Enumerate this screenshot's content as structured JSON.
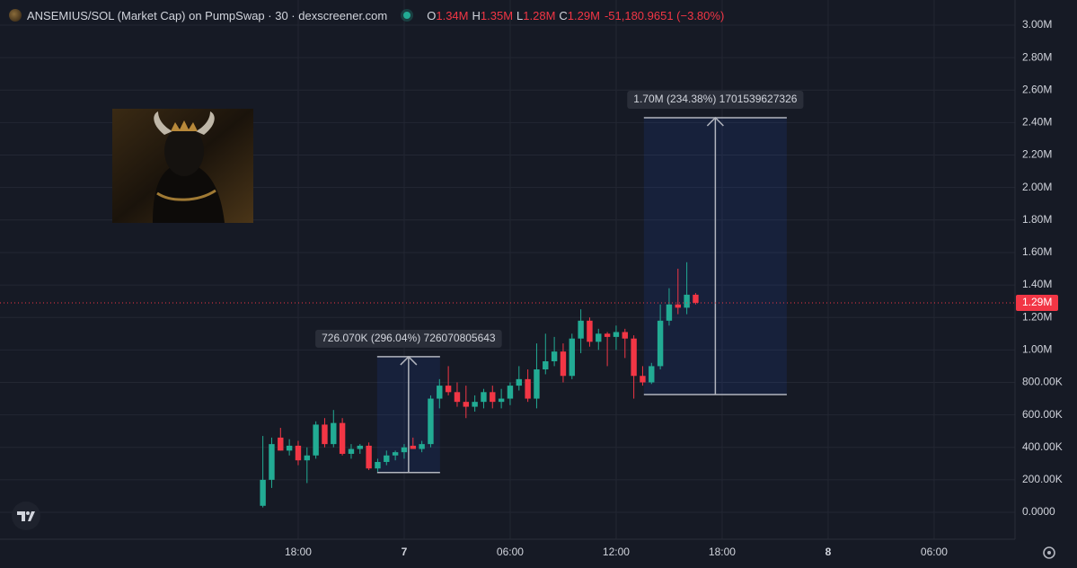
{
  "chart_data": {
    "type": "candlestick",
    "title": "ANSEMIUS/SOL (Market Cap) on PumpSwap · 30 · dexscreener.com",
    "legend_ohlc": [
      {
        "label": "O",
        "value": "1.34M"
      },
      {
        "label": "H",
        "value": "1.35M"
      },
      {
        "label": "L",
        "value": "1.28M"
      },
      {
        "label": "C",
        "value": "1.29M"
      }
    ],
    "change": "-51,180.9651 (−3.80%)",
    "up_color": "#22ab94",
    "down_color": "#f23645",
    "grid": true,
    "xlim": [
      -22.88,
      34.58
    ],
    "xticks": [
      {
        "value": -6,
        "label": "18:00"
      },
      {
        "value": 0,
        "label": "7"
      },
      {
        "value": 6,
        "label": "06:00"
      },
      {
        "value": 12,
        "label": "12:00"
      },
      {
        "value": 18,
        "label": "18:00"
      },
      {
        "value": 24,
        "label": "8"
      },
      {
        "value": 30,
        "label": "06:00"
      }
    ],
    "ylim": [
      -166000,
      3155000
    ],
    "yticks": [
      {
        "value": 0,
        "label": "0.0000"
      },
      {
        "value": 200000,
        "label": "200.00K"
      },
      {
        "value": 400000,
        "label": "400.00K"
      },
      {
        "value": 600000,
        "label": "600.00K"
      },
      {
        "value": 800000,
        "label": "800.00K"
      },
      {
        "value": 1000000,
        "label": "1.00M"
      },
      {
        "value": 1200000,
        "label": "1.20M"
      },
      {
        "value": 1400000,
        "label": "1.40M"
      },
      {
        "value": 1600000,
        "label": "1.60M"
      },
      {
        "value": 1800000,
        "label": "1.80M"
      },
      {
        "value": 2000000,
        "label": "2.00M"
      },
      {
        "value": 2200000,
        "label": "2.20M"
      },
      {
        "value": 2400000,
        "label": "2.40M"
      },
      {
        "value": 2600000,
        "label": "2.60M"
      },
      {
        "value": 2800000,
        "label": "2.80M"
      },
      {
        "value": 3000000,
        "label": "3.00M"
      }
    ],
    "x": [
      -8,
      -7.5,
      -7,
      -6.5,
      -6,
      -5.5,
      -5,
      -4.5,
      -4,
      -3.5,
      -3,
      -2.5,
      -2,
      -1.5,
      -1,
      -0.5,
      0,
      0.5,
      1,
      1.5,
      2,
      2.5,
      3,
      3.5,
      4,
      4.5,
      5,
      5.5,
      6,
      6.5,
      7,
      7.5,
      8,
      8.5,
      9,
      9.5,
      10,
      10.5,
      11,
      11.5,
      12,
      12.5,
      13,
      13.5,
      14,
      14.5,
      15,
      15.5,
      16,
      16.5
    ],
    "open": [
      40000,
      200000,
      460000,
      380000,
      410000,
      320000,
      350000,
      540000,
      420000,
      550000,
      360000,
      390000,
      410000,
      270000,
      310000,
      350000,
      370000,
      410000,
      390000,
      420000,
      700000,
      780000,
      740000,
      680000,
      650000,
      680000,
      740000,
      680000,
      700000,
      780000,
      820000,
      700000,
      880000,
      930000,
      990000,
      840000,
      1070000,
      1180000,
      1050000,
      1100000,
      1080000,
      1110000,
      1070000,
      840000,
      800000,
      900000,
      1180000,
      1280000,
      1260000,
      1340000
    ],
    "high": [
      470000,
      460000,
      520000,
      450000,
      440000,
      400000,
      560000,
      580000,
      630000,
      580000,
      420000,
      420000,
      430000,
      330000,
      380000,
      380000,
      420000,
      460000,
      440000,
      720000,
      820000,
      900000,
      800000,
      780000,
      720000,
      760000,
      780000,
      760000,
      800000,
      900000,
      880000,
      1040000,
      1100000,
      1080000,
      1040000,
      1100000,
      1250000,
      1200000,
      1130000,
      1110000,
      1150000,
      1130000,
      1090000,
      900000,
      920000,
      1280000,
      1380000,
      1500000,
      1540000,
      1350000
    ],
    "low": [
      30000,
      150000,
      380000,
      350000,
      290000,
      180000,
      330000,
      400000,
      400000,
      350000,
      330000,
      360000,
      260000,
      250000,
      290000,
      320000,
      330000,
      390000,
      370000,
      400000,
      640000,
      720000,
      650000,
      580000,
      620000,
      640000,
      640000,
      640000,
      660000,
      750000,
      680000,
      640000,
      850000,
      900000,
      800000,
      820000,
      980000,
      1020000,
      1000000,
      900000,
      1000000,
      950000,
      700000,
      780000,
      790000,
      880000,
      1150000,
      1220000,
      1220000,
      1280000
    ],
    "close": [
      200000,
      420000,
      380000,
      410000,
      320000,
      350000,
      540000,
      420000,
      550000,
      360000,
      390000,
      410000,
      270000,
      310000,
      350000,
      370000,
      400000,
      390000,
      420000,
      700000,
      780000,
      740000,
      680000,
      650000,
      680000,
      740000,
      680000,
      700000,
      780000,
      820000,
      700000,
      880000,
      930000,
      990000,
      840000,
      1070000,
      1180000,
      1050000,
      1100000,
      1080000,
      1110000,
      1070000,
      840000,
      800000,
      900000,
      1180000,
      1280000,
      1260000,
      1340000,
      1290000
    ],
    "measurements": [
      {
        "label": "726.070K (296.04%) 726070805643",
        "x": [
          -1.53,
          2.03
        ],
        "y": [
          245000,
          958000
        ]
      },
      {
        "label": "1.70M (234.38%) 1701539627326",
        "x": [
          13.57,
          21.66
        ],
        "y": [
          725000,
          2430000
        ]
      }
    ],
    "last_price": {
      "value": 1290000,
      "label": "1.29M"
    }
  }
}
